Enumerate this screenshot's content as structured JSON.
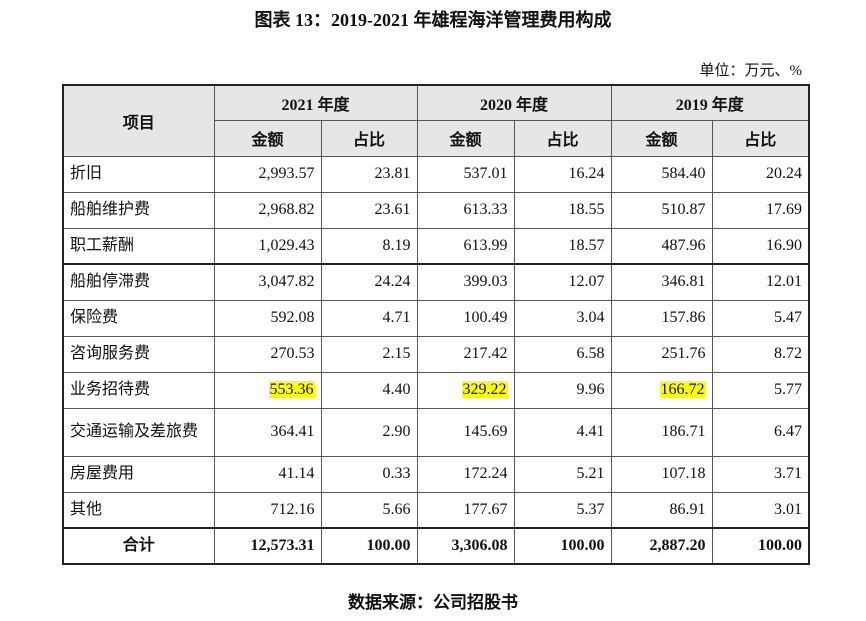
{
  "title": "图表 13：2019-2021 年雄程海洋管理费用构成",
  "unit": "单位：万元、%",
  "highlight_color": "#ffff00",
  "header": {
    "item": "项目",
    "years": [
      "2021 年度",
      "2020 年度",
      "2019 年度"
    ],
    "amount": "金额",
    "ratio": "占比"
  },
  "rows": [
    {
      "name": "折旧",
      "values": [
        "2,993.57",
        "23.81",
        "537.01",
        "16.24",
        "584.40",
        "20.24"
      ]
    },
    {
      "name": "船舶维护费",
      "values": [
        "2,968.82",
        "23.61",
        "613.33",
        "18.55",
        "510.87",
        "17.69"
      ]
    },
    {
      "name": "职工薪酬",
      "values": [
        "1,029.43",
        "8.19",
        "613.99",
        "18.57",
        "487.96",
        "16.90"
      ]
    },
    {
      "name": "船舶停滞费",
      "values": [
        "3,047.82",
        "24.24",
        "399.03",
        "12.07",
        "346.81",
        "12.01"
      ]
    },
    {
      "name": "保险费",
      "values": [
        "592.08",
        "4.71",
        "100.49",
        "3.04",
        "157.86",
        "5.47"
      ]
    },
    {
      "name": "咨询服务费",
      "values": [
        "270.53",
        "2.15",
        "217.42",
        "6.58",
        "251.76",
        "8.72"
      ]
    },
    {
      "name": "业务招待费",
      "values": [
        "553.36",
        "4.40",
        "329.22",
        "9.96",
        "166.72",
        "5.77"
      ],
      "highlighted_amounts": true
    },
    {
      "name": "交通运输及差旅费",
      "values": [
        "364.41",
        "2.90",
        "145.69",
        "4.41",
        "186.71",
        "6.47"
      ]
    },
    {
      "name": "房屋费用",
      "values": [
        "41.14",
        "0.33",
        "172.24",
        "5.21",
        "107.18",
        "3.71"
      ]
    },
    {
      "name": "其他",
      "values": [
        "712.16",
        "5.66",
        "177.67",
        "5.37",
        "86.91",
        "3.01"
      ]
    }
  ],
  "total": {
    "name": "合计",
    "values": [
      "12,573.31",
      "100.00",
      "3,306.08",
      "100.00",
      "2,887.20",
      "100.00"
    ]
  },
  "source": "数据来源：公司招股书"
}
